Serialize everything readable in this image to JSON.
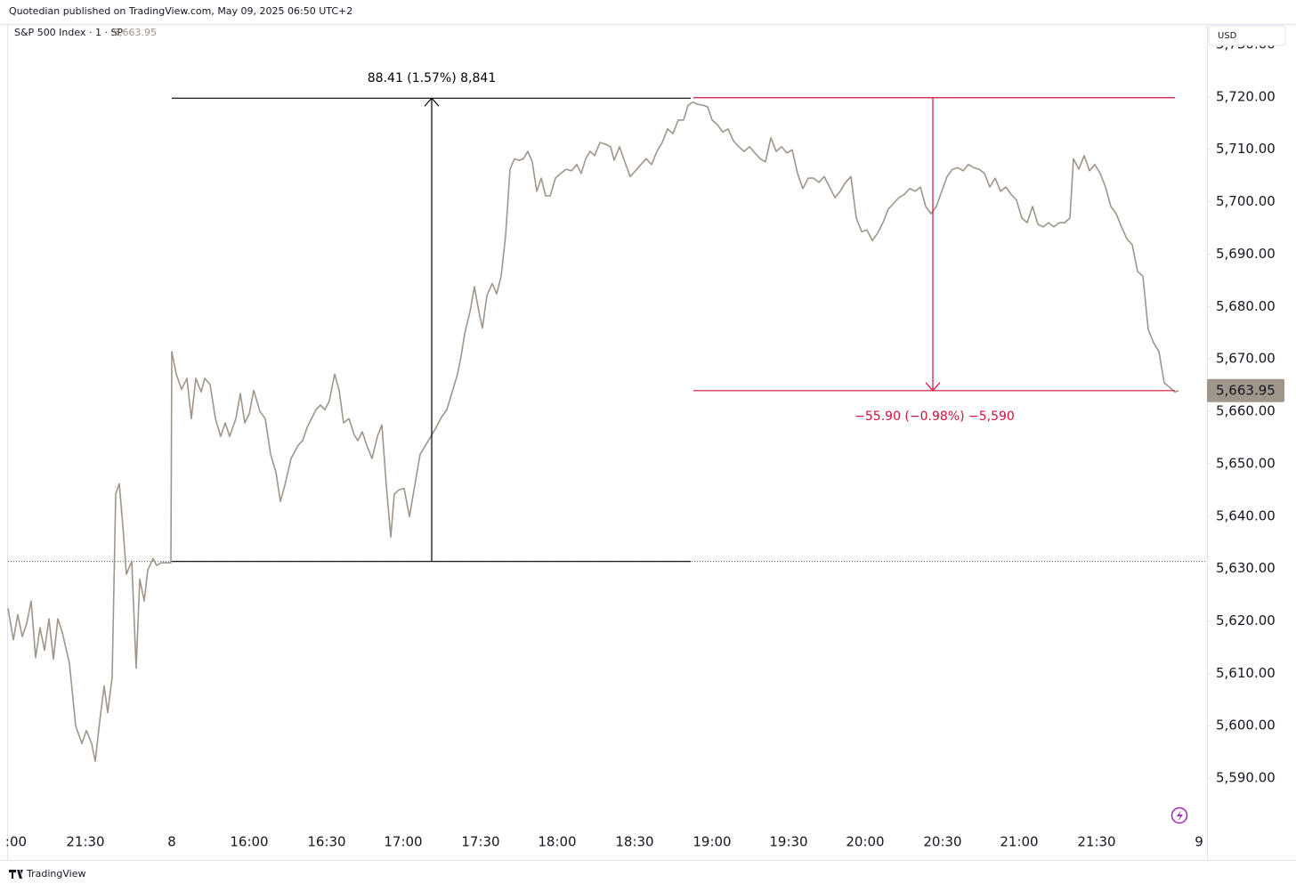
{
  "header": "Quotedian published on TradingView.com, May 09, 2025 06:50 UTC+2",
  "footer": "TradingView",
  "chart_data": {
    "type": "line",
    "title": "S&P 500 Index · 1 · SP",
    "currency": "USD",
    "color": "#a0958a",
    "last_value": {
      "value": 5663.95,
      "label": "5,663.95"
    },
    "x_labels": [
      ":00",
      "21:30",
      "8",
      "16:00",
      "16:30",
      "17:00",
      "17:30",
      "18:00",
      "18:30",
      "19:00",
      "19:30",
      "20:00",
      "20:30",
      "21:00",
      "21:30",
      "9"
    ],
    "ylim": [
      5580.5,
      5733.4
    ],
    "yticks": [
      {
        "value": 5590,
        "label": "5,590.00"
      },
      {
        "value": 5600,
        "label": "5,600.00"
      },
      {
        "value": 5610,
        "label": "5,610.00"
      },
      {
        "value": 5620,
        "label": "5,620.00"
      },
      {
        "value": 5630,
        "label": "5,630.00"
      },
      {
        "value": 5640,
        "label": "5,640.00"
      },
      {
        "value": 5650,
        "label": "5,650.00"
      },
      {
        "value": 5660,
        "label": "5,660.00"
      },
      {
        "value": 5670,
        "label": "5,670.00"
      },
      {
        "value": 5680,
        "label": "5,680.00"
      },
      {
        "value": 5690,
        "label": "5,690.00"
      },
      {
        "value": 5700,
        "label": "5,700.00"
      },
      {
        "value": 5710,
        "label": "5,710.00"
      },
      {
        "value": 5720,
        "label": "5,720.00"
      },
      {
        "value": 5730,
        "label": "5,730.00"
      }
    ],
    "measurements": [
      {
        "from": 5631.35,
        "to": 5719.76,
        "label": "88.41 (1.57%) 8,841",
        "color": "#000000"
      },
      {
        "from": 5719.85,
        "to": 5663.95,
        "label": "−55.90 (−0.98%) −5,590",
        "color": "#d1103c"
      }
    ],
    "values": [
      5622.4,
      5616.4,
      5621.2,
      5617.0,
      5619.5,
      5623.8,
      5613.0,
      5618.7,
      5614.4,
      5620.4,
      5612.7,
      5620.4,
      5617.8,
      5611.9,
      5600.0,
      5596.6,
      5599.1,
      5596.6,
      5593.2,
      5600.8,
      5607.6,
      5602.5,
      5609.3,
      5644.2,
      5646.2,
      5638.2,
      5628.9,
      5631.4,
      5611.0,
      5628.0,
      5623.8,
      5629.7,
      5631.9,
      5630.6,
      5631.1,
      5631.1,
      5671.4,
      5667.1,
      5664.2,
      5666.3,
      5658.6,
      5666.3,
      5663.7,
      5666.3,
      5665.1,
      5658.6,
      5655.2,
      5657.8,
      5655.2,
      5658.6,
      5663.4,
      5657.8,
      5659.5,
      5664.0,
      5660.0,
      5658.6,
      5651.8,
      5648.4,
      5642.8,
      5645.9,
      5651.0,
      5653.5,
      5654.4,
      5656.9,
      5658.6,
      5660.3,
      5661.2,
      5660.3,
      5662.0,
      5667.1,
      5664.0,
      5657.8,
      5658.6,
      5655.5,
      5654.4,
      5656.1,
      5653.5,
      5651.0,
      5655.2,
      5657.4,
      5645.9,
      5636.0,
      5644.2,
      5645.0,
      5645.3,
      5639.9,
      5645.9,
      5651.8,
      5653.5,
      5655.2,
      5656.9,
      5658.9,
      5660.3,
      5663.7,
      5667.1,
      5670.5,
      5674.8,
      5679.0,
      5683.8,
      5679.0,
      5675.9,
      5682.1,
      5684.4,
      5682.4,
      5685.8,
      5693.5,
      5706.2,
      5708.2,
      5707.9,
      5708.2,
      5709.6,
      5707.6,
      5702.0,
      5704.5,
      5701.1,
      5701.1,
      5704.5,
      5705.4,
      5706.2,
      5705.9,
      5707.1,
      5705.4,
      5708.2,
      5709.6,
      5708.8,
      5711.3,
      5711.0,
      5710.5,
      5707.9,
      5710.5,
      5707.6,
      5704.8,
      5705.9,
      5707.1,
      5708.2,
      5707.1,
      5709.6,
      5711.3,
      5713.9,
      5713.0,
      5715.6,
      5715.6,
      5718.4,
      5719.0,
      5718.6,
      5718.4,
      5718.1,
      5715.6,
      5714.7,
      5713.3,
      5713.9,
      5711.6,
      5710.5,
      5709.6,
      5710.5,
      5709.3,
      5708.2,
      5707.6,
      5712.2,
      5709.6,
      5710.5,
      5709.3,
      5709.9,
      5705.4,
      5702.5,
      5704.5,
      5704.5,
      5703.7,
      5704.8,
      5702.8,
      5700.8,
      5702.0,
      5703.7,
      5704.8,
      5696.9,
      5694.3,
      5694.6,
      5692.6,
      5694.0,
      5696.0,
      5698.6,
      5699.7,
      5700.8,
      5701.4,
      5702.5,
      5702.0,
      5702.8,
      5699.1,
      5697.7,
      5699.1,
      5702.0,
      5704.8,
      5706.2,
      5706.5,
      5705.9,
      5707.1,
      5706.5,
      5706.2,
      5705.4,
      5702.8,
      5704.5,
      5702.0,
      5702.8,
      5701.4,
      5700.3,
      5696.9,
      5696.0,
      5699.1,
      5695.7,
      5695.2,
      5696.0,
      5695.2,
      5696.0,
      5696.0,
      5696.9,
      5708.2,
      5706.2,
      5708.8,
      5705.9,
      5707.1,
      5705.4,
      5702.8,
      5699.1,
      5697.7,
      5695.2,
      5692.9,
      5691.8,
      5686.7,
      5685.8,
      5675.6,
      5673.1,
      5671.4,
      5665.4,
      5664.6,
      5663.7,
      5663.95
    ]
  }
}
